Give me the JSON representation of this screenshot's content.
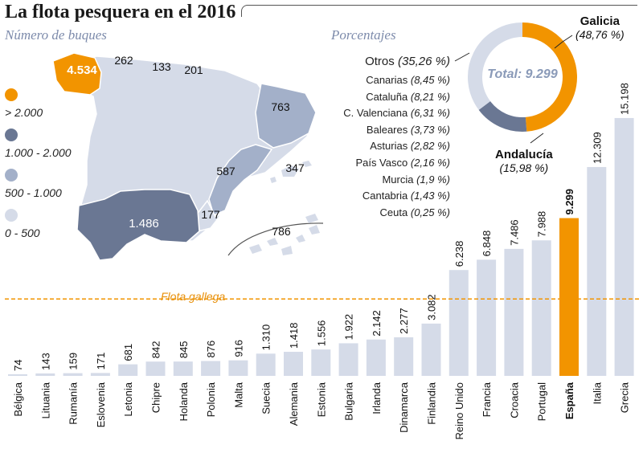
{
  "title": "La flota pesquera en el 2016",
  "map": {
    "heading": "Número de buques",
    "legend": [
      {
        "label": "> 2.000",
        "color": "#f29400"
      },
      {
        "label": "1.000 - 2.000",
        "color": "#6a7793"
      },
      {
        "label": "500 - 1.000",
        "color": "#a3b0c9"
      },
      {
        "label": "0 - 500",
        "color": "#d5dbe8"
      }
    ],
    "regions": [
      {
        "name": "Galicia",
        "label": "4.534"
      },
      {
        "name": "Asturias",
        "label": "262"
      },
      {
        "name": "Cantabria",
        "label": "133"
      },
      {
        "name": "País Vasco",
        "label": "201"
      },
      {
        "name": "Cataluña",
        "label": "763"
      },
      {
        "name": "C. Valenciana",
        "label": "587"
      },
      {
        "name": "Baleares",
        "label": "347"
      },
      {
        "name": "Murcia",
        "label": "177"
      },
      {
        "name": "Andalucía",
        "label": "1.486"
      },
      {
        "name": "Canarias",
        "label": "786"
      }
    ]
  },
  "percentages": {
    "heading": "Porcentajes",
    "total_label": "Total: 9.299",
    "galicia": {
      "name": "Galicia",
      "value": "(48,76 %)"
    },
    "andalucia": {
      "name": "Andalucía",
      "value": "(15,98 %)"
    },
    "otros": {
      "name": "Otros",
      "value": "(35,26 %)"
    },
    "rows": [
      {
        "name": "Canarias",
        "value": "(8,45 %)"
      },
      {
        "name": "Cataluña",
        "value": "(8,21 %)"
      },
      {
        "name": "C. Valenciana",
        "value": "(6,31 %)"
      },
      {
        "name": "Baleares",
        "value": "(3,73 %)"
      },
      {
        "name": "Asturias",
        "value": "(2,82 %)"
      },
      {
        "name": "País Vasco",
        "value": "(2,16 %)"
      },
      {
        "name": "Murcia",
        "value": "(1,9 %)"
      },
      {
        "name": "Cantabria",
        "value": "(1,43 %)"
      },
      {
        "name": "Ceuta",
        "value": "(0,25 %)"
      }
    ],
    "colors": {
      "galicia": "#f29400",
      "andalucia": "#6a7793",
      "otros": "#d5dbe8"
    }
  },
  "reference_line": {
    "label": "Flota gallega",
    "value": 4534,
    "color": "#f29400"
  },
  "chart_data": [
    {
      "type": "bar",
      "title": "",
      "xlabel": "",
      "ylabel": "",
      "ylim": [
        0,
        16000
      ],
      "categories": [
        "Bélgica",
        "Lituania",
        "Rumanía",
        "Eslovenia",
        "Letonia",
        "Chipre",
        "Holanda",
        "Polonia",
        "Malta",
        "Suecia",
        "Alemania",
        "Estonia",
        "Bulgaria",
        "Irlanda",
        "Dinamarca",
        "Finlandia",
        "Reino Unido",
        "Francia",
        "Croacia",
        "Portugal",
        "España",
        "Italia",
        "Grecia"
      ],
      "values": [
        74,
        143,
        159,
        171,
        681,
        842,
        845,
        876,
        916,
        1310,
        1418,
        1556,
        1922,
        2142,
        2277,
        3082,
        6238,
        6848,
        7486,
        7988,
        9299,
        12309,
        15198
      ],
      "value_labels": [
        "74",
        "143",
        "159",
        "171",
        "681",
        "842",
        "845",
        "876",
        "916",
        "1.310",
        "1.418",
        "1.556",
        "1.922",
        "2.142",
        "2.277",
        "3.082",
        "6.238",
        "6.848",
        "7.486",
        "7.988",
        "9.299",
        "12.309",
        "15.198"
      ],
      "highlight": "España",
      "colors": {
        "bar": "#d5dbe8",
        "highlight": "#f29400"
      }
    },
    {
      "type": "pie",
      "title": "",
      "labels": [
        "Galicia",
        "Andalucía",
        "Otros"
      ],
      "values": [
        48.76,
        15.98,
        35.26
      ]
    }
  ]
}
